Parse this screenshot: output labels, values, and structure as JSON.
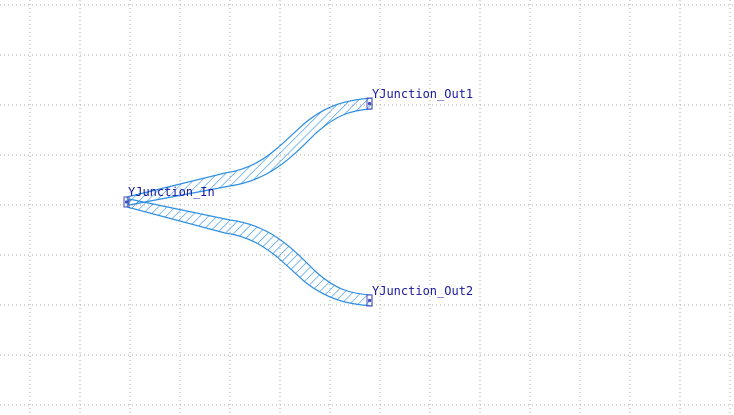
{
  "canvas": {
    "background": "#ffffff",
    "grid_color": "#a8a8a8"
  },
  "device": {
    "waveguide_color": "#2f8fe0",
    "hatch_color": "#2f8fe0",
    "port_color": "#4a4ab8",
    "label_color": "#1a1aa0"
  },
  "ports": {
    "input_label": "YJunction_In",
    "output1_label": "YJunction_Out1",
    "output2_label": "YJunction_Out2"
  }
}
